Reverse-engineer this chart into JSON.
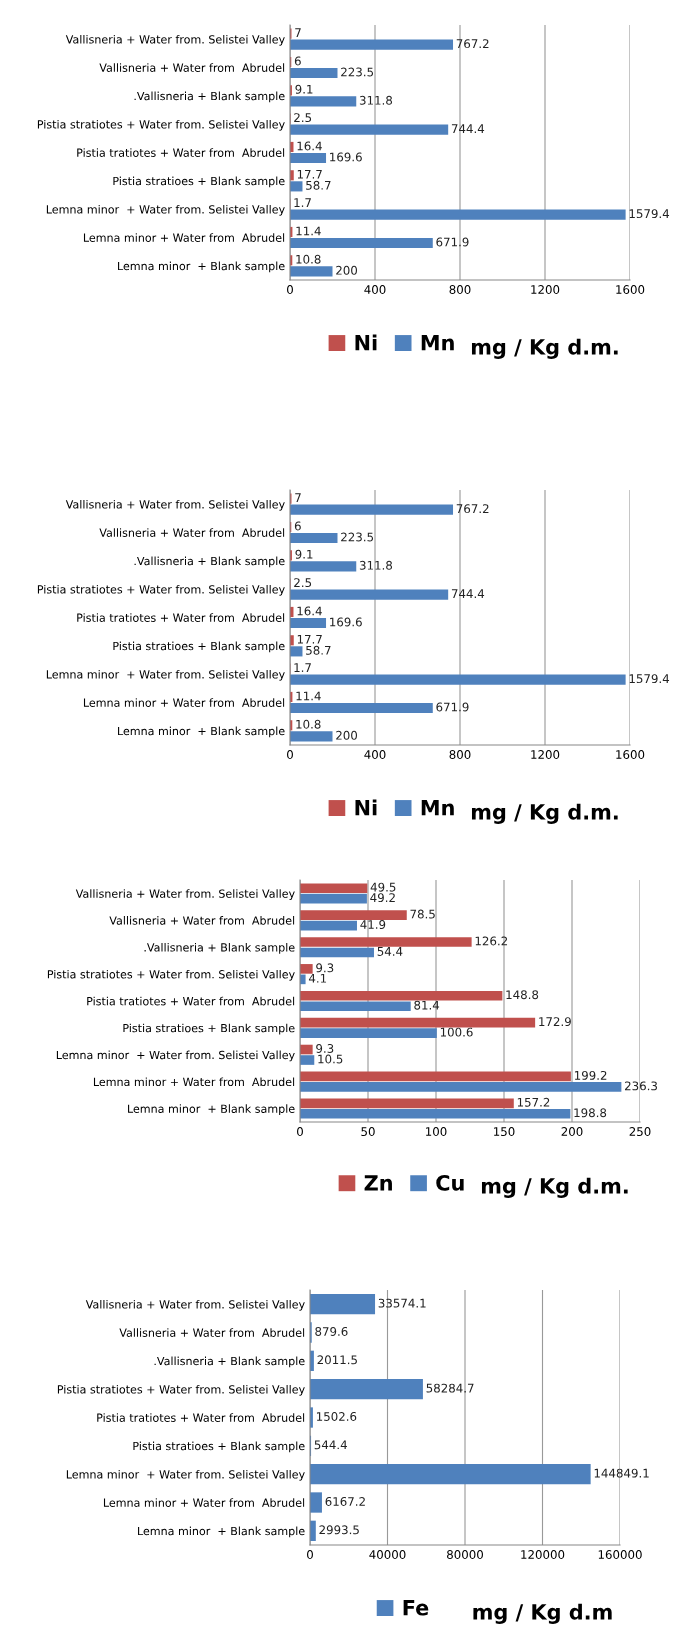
{
  "chart_data": [
    {
      "type": "bar",
      "orientation": "horizontal",
      "xlabel": "mg / Kg d.m.",
      "categories": [
        "Vallisneria + Water from. Selistei Valley",
        "Vallisneria + Water from  Abrudel",
        ".Vallisneria + Blank sample",
        "Pistia stratiotes + Water from. Selistei Valley",
        "Pistia tratiotes + Water from  Abrudel",
        "Pistia stratioes + Blank sample",
        "Lemna minor  + Water from. Selistei Valley",
        "Lemna minor + Water from  Abrudel",
        "Lemna minor  + Blank sample"
      ],
      "series": [
        {
          "name": "Ni",
          "color": "#c0504d",
          "values": [
            7,
            6,
            9.1,
            2.5,
            16.4,
            17.7,
            1.7,
            11.4,
            10.8
          ]
        },
        {
          "name": "Mn",
          "color": "#4f81bd",
          "values": [
            767.2,
            223.5,
            311.8,
            744.4,
            169.6,
            58.7,
            1579.4,
            671.9,
            200
          ]
        }
      ],
      "xlim": [
        0,
        1600
      ],
      "xticks": [
        0,
        400,
        800,
        1200,
        1600
      ],
      "grid": "x",
      "legend": "bottom",
      "data_labels": true
    },
    {
      "type": "bar",
      "orientation": "horizontal",
      "xlabel": "mg / Kg d.m.",
      "categories": [
        "Vallisneria + Water from. Selistei Valley",
        "Vallisneria + Water from  Abrudel",
        ".Vallisneria + Blank sample",
        "Pistia stratiotes + Water from. Selistei Valley",
        "Pistia tratiotes + Water from  Abrudel",
        "Pistia stratioes + Blank sample",
        "Lemna minor  + Water from. Selistei Valley",
        "Lemna minor + Water from  Abrudel",
        "Lemna minor  + Blank sample"
      ],
      "series": [
        {
          "name": "Ni",
          "color": "#c0504d",
          "values": [
            7,
            6,
            9.1,
            2.5,
            16.4,
            17.7,
            1.7,
            11.4,
            10.8
          ]
        },
        {
          "name": "Mn",
          "color": "#4f81bd",
          "values": [
            767.2,
            223.5,
            311.8,
            744.4,
            169.6,
            58.7,
            1579.4,
            671.9,
            200
          ]
        }
      ],
      "xlim": [
        0,
        1600
      ],
      "xticks": [
        0,
        400,
        800,
        1200,
        1600
      ],
      "grid": "x",
      "legend": "bottom",
      "data_labels": true
    },
    {
      "type": "bar",
      "orientation": "horizontal",
      "xlabel": "mg / Kg d.m.",
      "categories": [
        "Vallisneria + Water from. Selistei Valley",
        "Vallisneria + Water from  Abrudel",
        ".Vallisneria + Blank sample",
        "Pistia stratiotes + Water from. Selistei Valley",
        "Pistia tratiotes + Water from  Abrudel",
        "Pistia stratioes + Blank sample",
        "Lemna minor  + Water from. Selistei Valley",
        "Lemna minor + Water from  Abrudel",
        "Lemna minor  + Blank sample"
      ],
      "series": [
        {
          "name": "Zn",
          "color": "#c0504d",
          "values": [
            49.5,
            78.5,
            126.2,
            9.3,
            148.8,
            172.9,
            9.3,
            199.2,
            157.2
          ]
        },
        {
          "name": "Cu",
          "color": "#4f81bd",
          "values": [
            49.2,
            41.9,
            54.4,
            4.1,
            81.4,
            100.6,
            10.5,
            236.3,
            198.8
          ]
        }
      ],
      "xlim": [
        0,
        250
      ],
      "xticks": [
        0,
        50,
        100,
        150,
        200,
        250
      ],
      "grid": "x",
      "legend": "bottom",
      "data_labels": true
    },
    {
      "type": "bar",
      "orientation": "horizontal",
      "xlabel": "mg / Kg d.m",
      "categories": [
        "Vallisneria + Water from. Selistei Valley",
        "Vallisneria + Water from  Abrudel",
        ".Vallisneria + Blank sample",
        "Pistia stratiotes + Water from. Selistei Valley",
        "Pistia tratiotes + Water from  Abrudel",
        "Pistia stratioes + Blank sample",
        "Lemna minor  + Water from. Selistei Valley",
        "Lemna minor + Water from  Abrudel",
        "Lemna minor  + Blank sample"
      ],
      "series": [
        {
          "name": "Fe",
          "color": "#4f81bd",
          "values": [
            33574.1,
            879.6,
            2011.5,
            58284.7,
            1502.6,
            544.4,
            144849.1,
            6167.2,
            2993.5
          ]
        }
      ],
      "xlim": [
        0,
        160000
      ],
      "xticks": [
        0,
        40000,
        80000,
        120000,
        160000
      ],
      "grid": "x",
      "legend": "bottom",
      "data_labels": true
    }
  ]
}
